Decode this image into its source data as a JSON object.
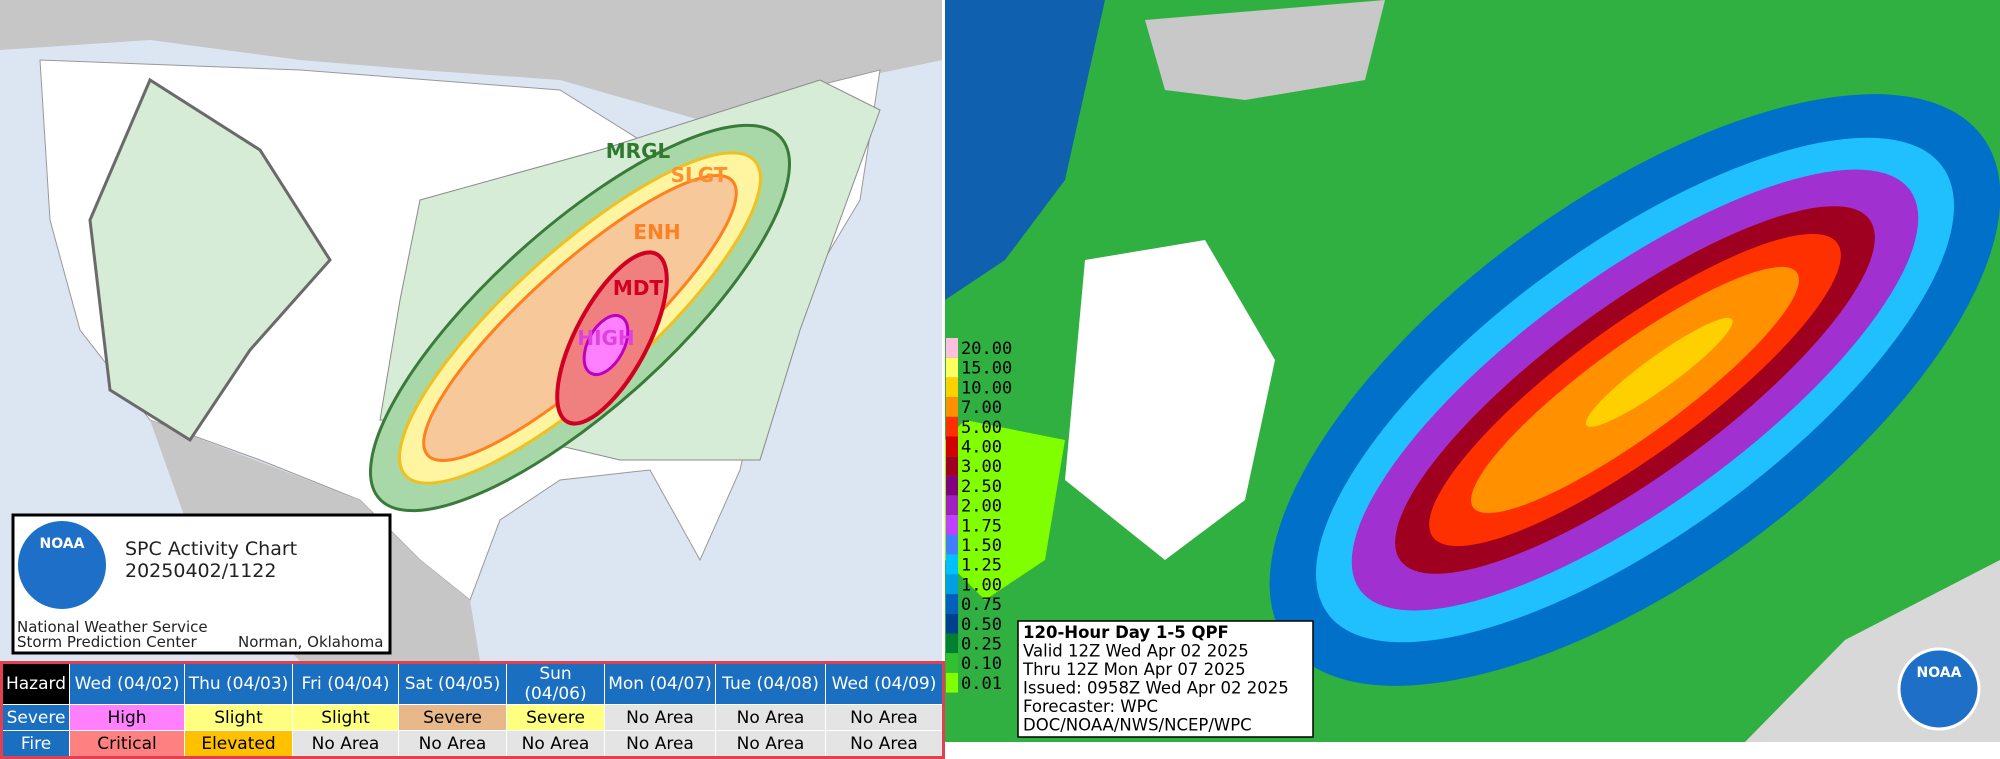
{
  "spc": {
    "title": "SPC Activity Chart",
    "timestamp": "20250402/1122",
    "agency": "National Weather Service",
    "center": "Storm Prediction Center",
    "location": "Norman, Oklahoma",
    "logo": "NOAA",
    "risk_labels": [
      "MRGL",
      "SLGT",
      "ENH",
      "MDT",
      "HIGH"
    ]
  },
  "table": {
    "header": [
      "Hazard",
      "Wed (04/02)",
      "Thu (04/03)",
      "Fri (04/04)",
      "Sat (04/05)",
      "Sun (04/06)",
      "Mon (04/07)",
      "Tue (04/08)",
      "Wed (04/09)"
    ],
    "rows": [
      [
        "Severe",
        "High",
        "Slight",
        "Slight",
        "Severe",
        "Severe",
        "No Area",
        "No Area",
        "No Area"
      ],
      [
        "Fire",
        "Critical",
        "Elevated",
        "No Area",
        "No Area",
        "No Area",
        "No Area",
        "No Area",
        "No Area"
      ]
    ]
  },
  "qpf": {
    "legend": [
      {
        "label": "20.00",
        "color": "#ffc0e0"
      },
      {
        "label": "15.00",
        "color": "#ffff60"
      },
      {
        "label": "10.00",
        "color": "#ffd000"
      },
      {
        "label": "7.00",
        "color": "#ff9000"
      },
      {
        "label": "5.00",
        "color": "#ff3000"
      },
      {
        "label": "4.00",
        "color": "#d00000"
      },
      {
        "label": "3.00",
        "color": "#a00020"
      },
      {
        "label": "2.50",
        "color": "#800080"
      },
      {
        "label": "2.00",
        "color": "#a020c0"
      },
      {
        "label": "1.75",
        "color": "#c040ff"
      },
      {
        "label": "1.50",
        "color": "#4080ff"
      },
      {
        "label": "1.25",
        "color": "#00c0ff"
      },
      {
        "label": "1.00",
        "color": "#00a0e0"
      },
      {
        "label": "0.75",
        "color": "#0060c0"
      },
      {
        "label": "0.50",
        "color": "#004090"
      },
      {
        "label": "0.25",
        "color": "#008030"
      },
      {
        "label": "0.10",
        "color": "#30c030"
      },
      {
        "label": "0.01",
        "color": "#80ff00"
      }
    ],
    "info": [
      "120-Hour Day 1-5 QPF",
      "Valid 12Z Wed Apr 02 2025",
      "Thru 12Z Mon Apr 07 2025",
      "Issued: 0958Z Wed Apr 02 2025",
      "Forecaster: WPC",
      "DOC/NOAA/NWS/NCEP/WPC"
    ],
    "logo": "NOAA"
  }
}
